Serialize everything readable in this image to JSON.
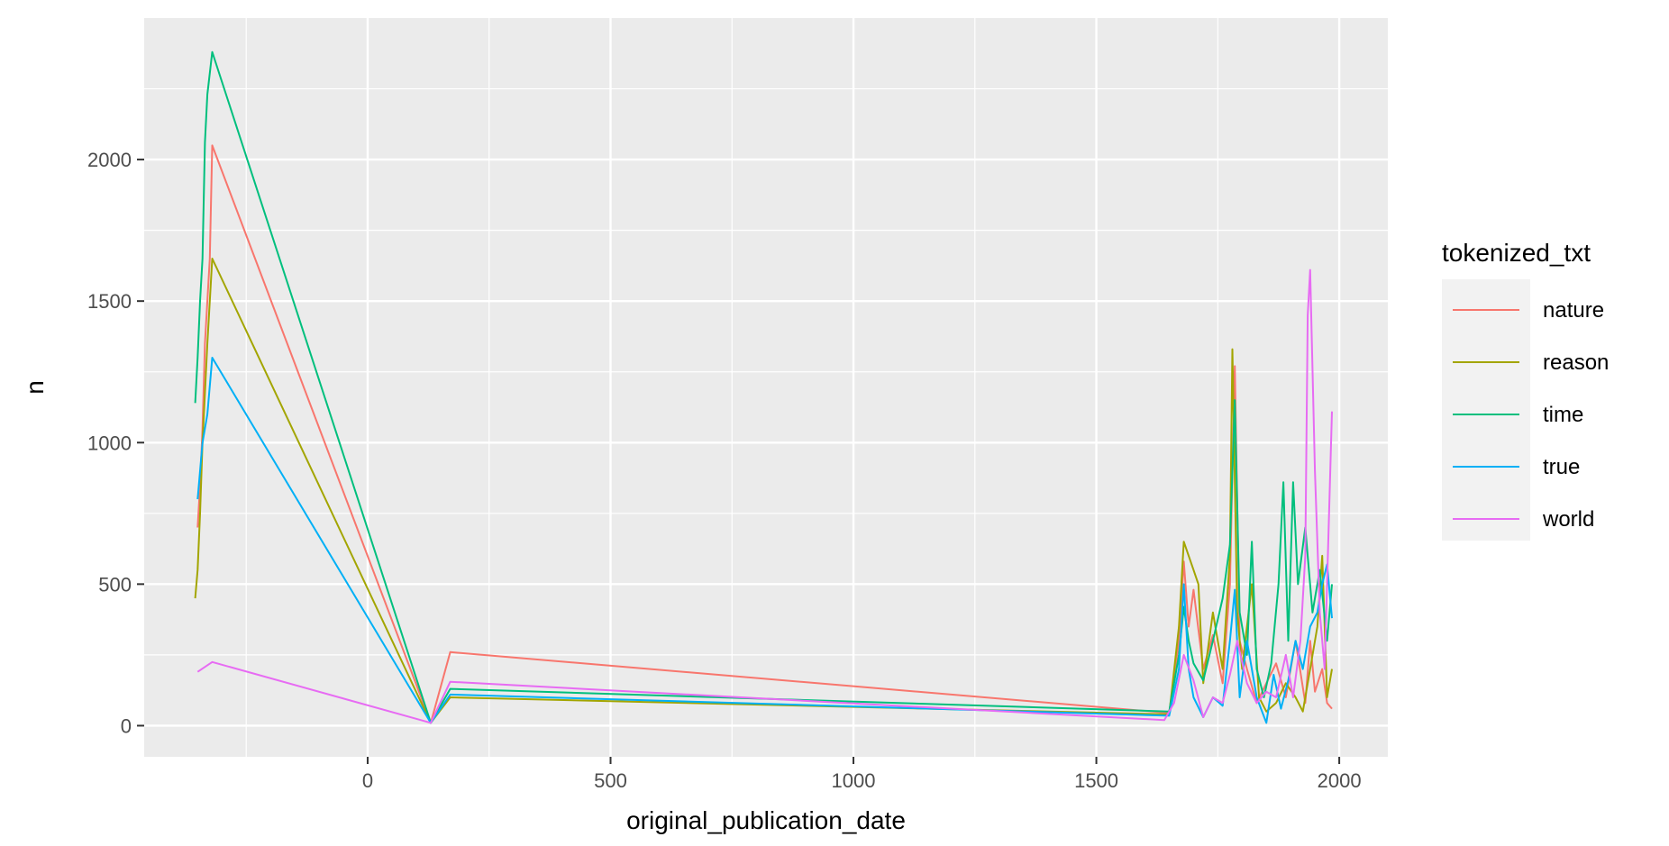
{
  "chart_data": {
    "type": "line",
    "xlabel": "original_publication_date",
    "ylabel": "n",
    "xlim": [
      -460,
      2100
    ],
    "ylim": [
      -110,
      2500
    ],
    "x_ticks": [
      0,
      500,
      1000,
      1500,
      2000
    ],
    "x_minor_ticks": [
      -250,
      250,
      750,
      1250,
      1750
    ],
    "y_ticks": [
      0,
      500,
      1000,
      1500,
      2000
    ],
    "y_minor_ticks": [
      250,
      750,
      1250,
      1750,
      2250
    ],
    "grid": true,
    "legend": {
      "title": "tokenized_txt",
      "position": "right"
    },
    "series": [
      {
        "name": "nature",
        "color": "#F8766D",
        "points": [
          [
            -350,
            700
          ],
          [
            -345,
            850
          ],
          [
            -340,
            1050
          ],
          [
            -335,
            1350
          ],
          [
            -325,
            1650
          ],
          [
            -320,
            2050
          ],
          [
            130,
            10
          ],
          [
            170,
            260
          ],
          [
            1650,
            45
          ],
          [
            1670,
            300
          ],
          [
            1680,
            580
          ],
          [
            1690,
            350
          ],
          [
            1700,
            480
          ],
          [
            1720,
            200
          ],
          [
            1740,
            320
          ],
          [
            1760,
            150
          ],
          [
            1775,
            500
          ],
          [
            1785,
            1270
          ],
          [
            1795,
            300
          ],
          [
            1810,
            200
          ],
          [
            1830,
            80
          ],
          [
            1850,
            150
          ],
          [
            1870,
            220
          ],
          [
            1890,
            100
          ],
          [
            1910,
            300
          ],
          [
            1930,
            80
          ],
          [
            1940,
            300
          ],
          [
            1950,
            120
          ],
          [
            1965,
            200
          ],
          [
            1975,
            80
          ],
          [
            1985,
            60
          ]
        ]
      },
      {
        "name": "reason",
        "color": "#A3A500",
        "points": [
          [
            -355,
            450
          ],
          [
            -350,
            550
          ],
          [
            -345,
            750
          ],
          [
            -340,
            1000
          ],
          [
            -330,
            1350
          ],
          [
            -320,
            1650
          ],
          [
            130,
            10
          ],
          [
            170,
            100
          ],
          [
            1650,
            40
          ],
          [
            1670,
            350
          ],
          [
            1680,
            650
          ],
          [
            1690,
            600
          ],
          [
            1700,
            550
          ],
          [
            1710,
            500
          ],
          [
            1720,
            150
          ],
          [
            1740,
            400
          ],
          [
            1760,
            200
          ],
          [
            1775,
            600
          ],
          [
            1780,
            1330
          ],
          [
            1790,
            400
          ],
          [
            1800,
            200
          ],
          [
            1820,
            500
          ],
          [
            1835,
            100
          ],
          [
            1850,
            50
          ],
          [
            1870,
            80
          ],
          [
            1890,
            150
          ],
          [
            1910,
            100
          ],
          [
            1925,
            50
          ],
          [
            1940,
            200
          ],
          [
            1955,
            350
          ],
          [
            1965,
            600
          ],
          [
            1975,
            100
          ],
          [
            1985,
            200
          ]
        ]
      },
      {
        "name": "time",
        "color": "#00BF7D",
        "points": [
          [
            -355,
            1140
          ],
          [
            -350,
            1300
          ],
          [
            -345,
            1500
          ],
          [
            -340,
            1650
          ],
          [
            -335,
            2060
          ],
          [
            -330,
            2230
          ],
          [
            -320,
            2380
          ],
          [
            130,
            10
          ],
          [
            170,
            130
          ],
          [
            1650,
            50
          ],
          [
            1670,
            250
          ],
          [
            1680,
            420
          ],
          [
            1690,
            300
          ],
          [
            1700,
            220
          ],
          [
            1720,
            160
          ],
          [
            1740,
            300
          ],
          [
            1760,
            450
          ],
          [
            1775,
            640
          ],
          [
            1785,
            1150
          ],
          [
            1795,
            400
          ],
          [
            1810,
            250
          ],
          [
            1820,
            650
          ],
          [
            1830,
            200
          ],
          [
            1845,
            100
          ],
          [
            1860,
            220
          ],
          [
            1875,
            500
          ],
          [
            1885,
            860
          ],
          [
            1895,
            300
          ],
          [
            1905,
            860
          ],
          [
            1915,
            500
          ],
          [
            1930,
            700
          ],
          [
            1945,
            400
          ],
          [
            1960,
            550
          ],
          [
            1975,
            300
          ],
          [
            1985,
            500
          ]
        ]
      },
      {
        "name": "true",
        "color": "#00B0F6",
        "points": [
          [
            -350,
            800
          ],
          [
            -345,
            900
          ],
          [
            -340,
            1000
          ],
          [
            -330,
            1100
          ],
          [
            -320,
            1300
          ],
          [
            130,
            10
          ],
          [
            170,
            110
          ],
          [
            1650,
            35
          ],
          [
            1670,
            200
          ],
          [
            1680,
            500
          ],
          [
            1690,
            200
          ],
          [
            1700,
            100
          ],
          [
            1720,
            30
          ],
          [
            1740,
            100
          ],
          [
            1760,
            70
          ],
          [
            1775,
            300
          ],
          [
            1785,
            480
          ],
          [
            1795,
            100
          ],
          [
            1810,
            300
          ],
          [
            1830,
            100
          ],
          [
            1850,
            10
          ],
          [
            1865,
            180
          ],
          [
            1880,
            60
          ],
          [
            1895,
            160
          ],
          [
            1910,
            300
          ],
          [
            1925,
            200
          ],
          [
            1940,
            350
          ],
          [
            1955,
            400
          ],
          [
            1965,
            500
          ],
          [
            1975,
            570
          ],
          [
            1985,
            380
          ]
        ]
      },
      {
        "name": "world",
        "color": "#E76BF3",
        "points": [
          [
            -350,
            190
          ],
          [
            -320,
            225
          ],
          [
            130,
            10
          ],
          [
            170,
            155
          ],
          [
            1640,
            20
          ],
          [
            1660,
            80
          ],
          [
            1680,
            250
          ],
          [
            1700,
            160
          ],
          [
            1720,
            30
          ],
          [
            1740,
            100
          ],
          [
            1760,
            80
          ],
          [
            1775,
            180
          ],
          [
            1790,
            300
          ],
          [
            1810,
            150
          ],
          [
            1830,
            80
          ],
          [
            1850,
            120
          ],
          [
            1870,
            100
          ],
          [
            1890,
            250
          ],
          [
            1905,
            100
          ],
          [
            1920,
            300
          ],
          [
            1930,
            600
          ],
          [
            1935,
            1450
          ],
          [
            1940,
            1610
          ],
          [
            1950,
            900
          ],
          [
            1960,
            400
          ],
          [
            1970,
            200
          ],
          [
            1985,
            1110
          ]
        ]
      }
    ]
  }
}
